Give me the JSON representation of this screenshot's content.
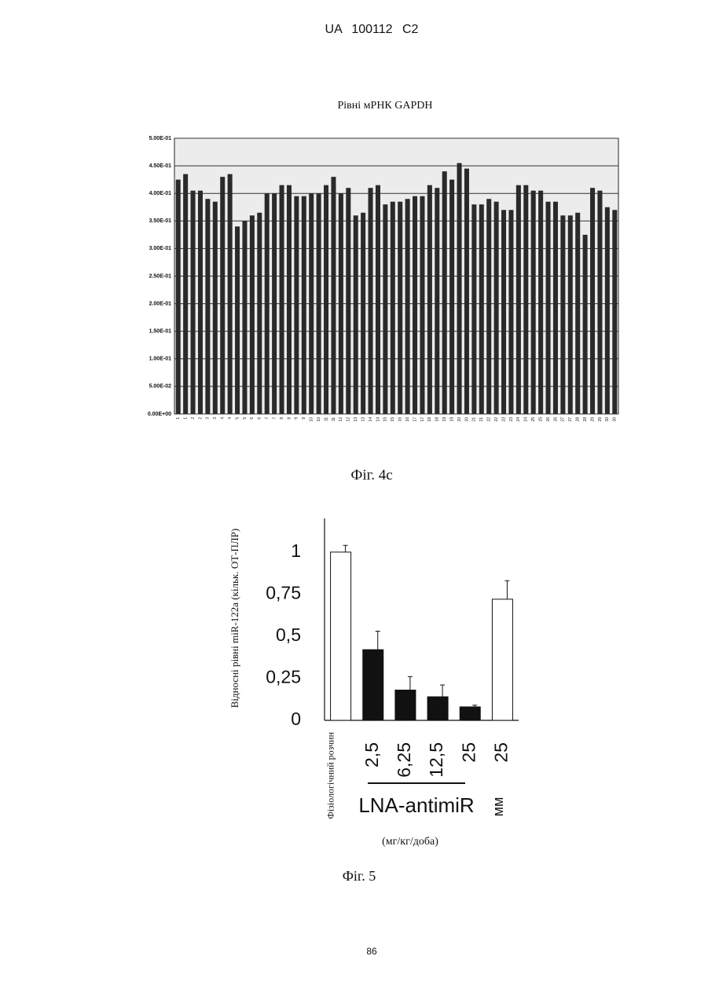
{
  "header": "UA 100112 C2",
  "chart_data": [
    {
      "type": "bar",
      "title": "Рівні мРНК GAPDH",
      "categories": [
        "1",
        "1",
        "2",
        "2",
        "3",
        "3",
        "4",
        "4",
        "5",
        "5",
        "6",
        "6",
        "7",
        "7",
        "8",
        "8",
        "9",
        "9",
        "10",
        "10",
        "11",
        "11",
        "12",
        "12",
        "13",
        "13",
        "14",
        "14",
        "15",
        "15",
        "16",
        "16",
        "17",
        "17",
        "18",
        "18",
        "19",
        "19",
        "20",
        "20",
        "21",
        "21",
        "22",
        "22",
        "23",
        "23",
        "24",
        "24",
        "25",
        "25",
        "26",
        "26",
        "27",
        "27",
        "28",
        "28",
        "29",
        "29",
        "30",
        "30"
      ],
      "values": [
        0.425,
        0.435,
        0.405,
        0.405,
        0.39,
        0.385,
        0.43,
        0.435,
        0.34,
        0.35,
        0.36,
        0.365,
        0.4,
        0.4,
        0.415,
        0.415,
        0.395,
        0.395,
        0.4,
        0.4,
        0.415,
        0.43,
        0.4,
        0.41,
        0.36,
        0.365,
        0.41,
        0.415,
        0.38,
        0.385,
        0.385,
        0.39,
        0.395,
        0.395,
        0.415,
        0.41,
        0.44,
        0.425,
        0.455,
        0.445,
        0.38,
        0.38,
        0.39,
        0.385,
        0.37,
        0.37,
        0.415,
        0.415,
        0.405,
        0.405,
        0.385,
        0.385,
        0.36,
        0.36,
        0.365,
        0.325,
        0.41,
        0.405,
        0.375,
        0.37
      ],
      "color": "#2a2a2a",
      "ylim": [
        0,
        0.5
      ],
      "yticks": [
        {
          "value": 0,
          "label": "0.00E+00"
        },
        {
          "value": 0.05,
          "label": "5.00E-02"
        },
        {
          "value": 0.1,
          "label": "1.00E-01"
        },
        {
          "value": 0.15,
          "label": "1.50E-01"
        },
        {
          "value": 0.2,
          "label": "2.00E-01"
        },
        {
          "value": 0.25,
          "label": "2.50E-01"
        },
        {
          "value": 0.3,
          "label": "3.00E-01"
        },
        {
          "value": 0.35,
          "label": "3.50E-01"
        },
        {
          "value": 0.4,
          "label": "4.00E-01"
        },
        {
          "value": 0.45,
          "label": "4.50E-01"
        },
        {
          "value": 0.5,
          "label": "5.00E-01"
        }
      ],
      "grid": true
    },
    {
      "type": "bar",
      "ylabel": "Відносні рівні miR-122a (кільк. ОТ-ПЛР)",
      "categories": [
        "Фізіологічний розчин",
        "2,5",
        "6,25",
        "12,5",
        "25",
        "25"
      ],
      "values": [
        1,
        0.42,
        0.18,
        0.14,
        0.08,
        0.72
      ],
      "errors": [
        0.04,
        0.11,
        0.08,
        0.07,
        0.01,
        0.11
      ],
      "colors": [
        "#ffffff",
        "#111111",
        "#111111",
        "#111111",
        "#111111",
        "#ffffff"
      ],
      "ylim": [
        0,
        1.2
      ],
      "yticks": [
        0,
        {
          "value": 0.25,
          "label": "0,25"
        },
        {
          "value": 0.5,
          "label": "0,5"
        },
        {
          "value": 0.75,
          "label": "0,75"
        },
        1
      ],
      "grid": false,
      "group_label": "LNA-antimiR",
      "control_label": "мм",
      "units_label": "(мг/кг/доба)"
    }
  ],
  "captions": [
    "Фіг. 4с",
    "Фіг. 5"
  ],
  "page_number": "86"
}
